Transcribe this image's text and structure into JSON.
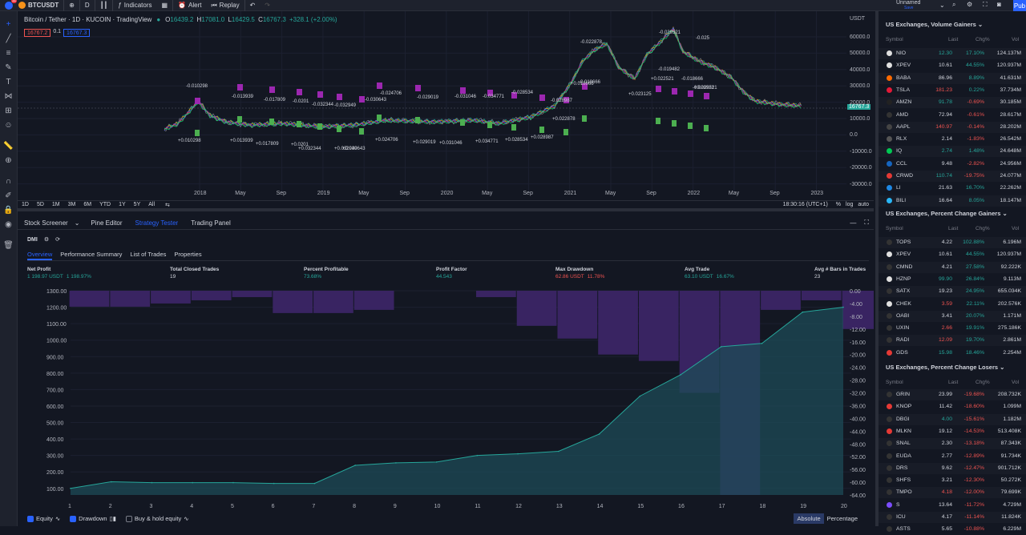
{
  "topbar": {
    "symbol": "BTCUSDT",
    "interval": "D",
    "indicators_label": "Indicators",
    "alert_label": "Alert",
    "replay_label": "Replay",
    "layout_name": "Unnamed",
    "layout_status": "Save",
    "publish_label": "Pub",
    "notif_count": "11"
  },
  "legend": {
    "title": "Bitcoin / Tether · 1D · KUCOIN · TradingView",
    "open": "16439.2",
    "high": "17081.0",
    "low": "16429.5",
    "close": "16767.3",
    "change": "+328.1 (+2.00%)",
    "bid": "16767.2",
    "spread": "0.1",
    "ask": "16767.3"
  },
  "yaxis": {
    "currency": "USDT",
    "labels": [
      "60000.0",
      "50000.0",
      "40000.0",
      "30000.0",
      "20000.0",
      "10000.0",
      "0.0",
      "-10000.0",
      "-20000.0",
      "-30000.0"
    ],
    "current_price": "16767.3"
  },
  "xaxis": [
    "2018",
    "May",
    "Sep",
    "2019",
    "May",
    "Sep",
    "2020",
    "May",
    "Sep",
    "2021",
    "May",
    "Sep",
    "2022",
    "May",
    "Sep",
    "2023"
  ],
  "trade_labels": {
    "above": [
      "-0.010298",
      "-0.013939",
      "-0.017809",
      "-0.0201",
      "-0.032344",
      "-0.032949",
      "-0.030643",
      "-0.024706",
      "-0.029019",
      "-0.031046",
      "-0.034771",
      "-0.028534",
      "-0.028987",
      "-0.022878",
      "-0.018666",
      "-0.029521",
      "-0.025",
      "-0.029521",
      "-0.019482",
      "-0.018666"
    ],
    "below": [
      "+0.010298",
      "+0.013939",
      "+0.017809",
      "+0.0201",
      "+0.032344",
      "+0.032949",
      "+0.030643",
      "+0.024706",
      "+0.029019",
      "+0.031046",
      "+0.034771",
      "+0.028534",
      "+0.028987",
      "+0.022878",
      "+0.018666",
      "+0.023125",
      "+0.022521",
      "+0.029521"
    ]
  },
  "periods": [
    "1D",
    "5D",
    "1M",
    "3M",
    "6M",
    "YTD",
    "1Y",
    "5Y",
    "All"
  ],
  "clock": "18:30:16 (UTC+1)",
  "scale_opts": [
    "%",
    "log",
    "auto"
  ],
  "panel_tabs": [
    "Stock Screener",
    "Pine Editor",
    "Strategy Tester",
    "Trading Panel"
  ],
  "strategy_name": "DMI",
  "sub_tabs": [
    "Overview",
    "Performance Summary",
    "List of Trades",
    "Properties"
  ],
  "metrics": [
    {
      "title": "Net Profit",
      "value": "1 198.97 USDT",
      "pct": "1 198.97%",
      "cls": "pos"
    },
    {
      "title": "Total Closed Trades",
      "value": "19",
      "pct": "",
      "cls": "plain"
    },
    {
      "title": "Percent Profitable",
      "value": "73.68%",
      "pct": "",
      "cls": "pos"
    },
    {
      "title": "Profit Factor",
      "value": "44.543",
      "pct": "",
      "cls": "pos"
    },
    {
      "title": "Max Drawdown",
      "value": "62.86 USDT",
      "pct": "11.78%",
      "cls": "neg"
    },
    {
      "title": "Avg Trade",
      "value": "63.10 USDT",
      "pct": "16.67%",
      "cls": "pos"
    },
    {
      "title": "Avg # Bars in Trades",
      "value": "23",
      "pct": "",
      "cls": "plain"
    }
  ],
  "chart_data": {
    "type": "area",
    "x": [
      1,
      2,
      3,
      4,
      5,
      6,
      7,
      8,
      9,
      10,
      11,
      12,
      13,
      14,
      15,
      16,
      17,
      18,
      19,
      20
    ],
    "series": [
      {
        "name": "Equity",
        "values": [
          100,
          140,
          135,
          135,
          135,
          130,
          130,
          240,
          255,
          260,
          300,
          310,
          325,
          430,
          660,
          790,
          960,
          980,
          1170,
          1200
        ]
      },
      {
        "name": "Drawdown",
        "values": [
          -5,
          -5,
          -4,
          -3,
          -2,
          -7,
          -7,
          -6,
          0,
          0,
          -2,
          -11,
          -15,
          -20,
          -22,
          -32,
          -64,
          -6,
          -3,
          -12
        ]
      }
    ],
    "left_axis": [
      "1300.00",
      "1200.00",
      "1100.00",
      "1000.00",
      "900.00",
      "800.00",
      "700.00",
      "600.00",
      "500.00",
      "400.00",
      "300.00",
      "200.00",
      "100.00"
    ],
    "right_axis": [
      "0.00",
      "-4.00",
      "-8.00",
      "-12.00",
      "-16.00",
      "-20.00",
      "-24.00",
      "-28.00",
      "-32.00",
      "-36.00",
      "-40.00",
      "-44.00",
      "-48.00",
      "-52.00",
      "-56.00",
      "-60.00",
      "-64.00"
    ],
    "ylim_left": [
      60,
      1300
    ],
    "ylim_right": [
      -64,
      0
    ],
    "colors": {
      "equity": "#26a69a",
      "drawdown": "#7e57c2",
      "fill_equity": "#1e4b57",
      "fill_drawdown": "#3b2566"
    }
  },
  "bottom": {
    "equity": "Equity",
    "drawdown": "Drawdown",
    "buyhold": "Buy & hold equity",
    "absolute": "Absolute",
    "percentage": "Percentage"
  },
  "watch1": {
    "title": "US Exchanges, Volume Gainers",
    "cols": [
      "Symbol",
      "Last",
      "Chg%",
      "Vol"
    ],
    "rows": [
      {
        "s": "NIO",
        "l": "12.30",
        "c": "17.10%",
        "v": "124.137M",
        "lc": "pos",
        "cc": "pos",
        "ic": "#e0e0e0"
      },
      {
        "s": "XPEV",
        "l": "10.61",
        "c": "44.55%",
        "v": "120.937M",
        "lc": "plain",
        "cc": "pos",
        "ic": "#e0e0e0"
      },
      {
        "s": "BABA",
        "l": "86.96",
        "c": "8.89%",
        "v": "41.631M",
        "lc": "plain",
        "cc": "pos",
        "ic": "#ff6a00"
      },
      {
        "s": "TSLA",
        "l": "181.23",
        "c": "0.22%",
        "v": "37.734M",
        "lc": "neg",
        "cc": "pos",
        "ic": "#e31937"
      },
      {
        "s": "AMZN",
        "l": "91.78",
        "c": "-0.69%",
        "v": "30.185M",
        "lc": "pos",
        "cc": "neg",
        "ic": "#222"
      },
      {
        "s": "AMD",
        "l": "72.94",
        "c": "-0.61%",
        "v": "28.617M",
        "lc": "plain",
        "cc": "neg",
        "ic": "#333"
      },
      {
        "s": "AAPL",
        "l": "140.97",
        "c": "-0.14%",
        "v": "28.202M",
        "lc": "neg",
        "cc": "neg",
        "ic": "#444"
      },
      {
        "s": "RLX",
        "l": "2.14",
        "c": "-1.83%",
        "v": "26.542M",
        "lc": "plain",
        "cc": "neg",
        "ic": "#555"
      },
      {
        "s": "IQ",
        "l": "2.74",
        "c": "1.48%",
        "v": "24.648M",
        "lc": "pos",
        "cc": "pos",
        "ic": "#00c853"
      },
      {
        "s": "CCL",
        "l": "9.48",
        "c": "-2.82%",
        "v": "24.956M",
        "lc": "plain",
        "cc": "neg",
        "ic": "#1565c0"
      },
      {
        "s": "CRWD",
        "l": "110.74",
        "c": "-19.75%",
        "v": "24.077M",
        "lc": "pos",
        "cc": "neg",
        "ic": "#e53935"
      },
      {
        "s": "LI",
        "l": "21.63",
        "c": "16.70%",
        "v": "22.262M",
        "lc": "plain",
        "cc": "pos",
        "ic": "#1e88e5"
      },
      {
        "s": "BILI",
        "l": "16.64",
        "c": "8.05%",
        "v": "18.147M",
        "lc": "plain",
        "cc": "pos",
        "ic": "#29b6f6"
      }
    ]
  },
  "watch2": {
    "title": "US Exchanges, Percent Change Gainers",
    "cols": [
      "Symbol",
      "Last",
      "Chg%",
      "Vol"
    ],
    "rows": [
      {
        "s": "TOPS",
        "l": "4.22",
        "c": "102.88%",
        "v": "6.196M",
        "lc": "plain",
        "cc": "pos",
        "ic": "#333"
      },
      {
        "s": "XPEV",
        "l": "10.61",
        "c": "44.55%",
        "v": "120.937M",
        "lc": "plain",
        "cc": "pos",
        "ic": "#e0e0e0"
      },
      {
        "s": "CMND",
        "l": "4.21",
        "c": "27.58%",
        "v": "92.222K",
        "lc": "plain",
        "cc": "pos",
        "ic": "#333"
      },
      {
        "s": "HZNP",
        "l": "99.90",
        "c": "26.84%",
        "v": "9.113M",
        "lc": "pos",
        "cc": "pos",
        "ic": "#e0e0e0"
      },
      {
        "s": "SATX",
        "l": "19.23",
        "c": "24.95%",
        "v": "655.034K",
        "lc": "plain",
        "cc": "pos",
        "ic": "#333"
      },
      {
        "s": "CHEK",
        "l": "3.59",
        "c": "22.11%",
        "v": "202.576K",
        "lc": "neg",
        "cc": "pos",
        "ic": "#e0e0e0"
      },
      {
        "s": "OABI",
        "l": "3.41",
        "c": "20.07%",
        "v": "1.171M",
        "lc": "plain",
        "cc": "pos",
        "ic": "#333"
      },
      {
        "s": "UXIN",
        "l": "2.66",
        "c": "19.91%",
        "v": "275.186K",
        "lc": "neg",
        "cc": "pos",
        "ic": "#333"
      },
      {
        "s": "RADI",
        "l": "12.09",
        "c": "19.70%",
        "v": "2.861M",
        "lc": "neg",
        "cc": "pos",
        "ic": "#333"
      },
      {
        "s": "GDS",
        "l": "15.98",
        "c": "18.46%",
        "v": "2.254M",
        "lc": "pos",
        "cc": "pos",
        "ic": "#e53935"
      }
    ]
  },
  "watch3": {
    "title": "US Exchanges, Percent Change Losers",
    "cols": [
      "Symbol",
      "Last",
      "Chg%",
      "Vol"
    ],
    "rows": [
      {
        "s": "GRIN",
        "l": "23.99",
        "c": "-19.68%",
        "v": "208.732K",
        "lc": "plain",
        "cc": "neg",
        "ic": "#333"
      },
      {
        "s": "KNOP",
        "l": "11.42",
        "c": "-18.60%",
        "v": "1.099M",
        "lc": "plain",
        "cc": "neg",
        "ic": "#e53935"
      },
      {
        "s": "DBGI",
        "l": "4.00",
        "c": "-15.61%",
        "v": "1.182M",
        "lc": "pos",
        "cc": "neg",
        "ic": "#333"
      },
      {
        "s": "MLKN",
        "l": "19.12",
        "c": "-14.53%",
        "v": "513.408K",
        "lc": "plain",
        "cc": "neg",
        "ic": "#e53935"
      },
      {
        "s": "SNAL",
        "l": "2.30",
        "c": "-13.18%",
        "v": "87.343K",
        "lc": "plain",
        "cc": "neg",
        "ic": "#333"
      },
      {
        "s": "EUDA",
        "l": "2.77",
        "c": "-12.89%",
        "v": "91.734K",
        "lc": "plain",
        "cc": "neg",
        "ic": "#333"
      },
      {
        "s": "DRS",
        "l": "9.62",
        "c": "-12.47%",
        "v": "901.712K",
        "lc": "plain",
        "cc": "neg",
        "ic": "#333"
      },
      {
        "s": "SHFS",
        "l": "3.21",
        "c": "-12.30%",
        "v": "50.272K",
        "lc": "plain",
        "cc": "neg",
        "ic": "#333"
      },
      {
        "s": "TMPO",
        "l": "4.18",
        "c": "-12.00%",
        "v": "79.699K",
        "lc": "neg",
        "cc": "neg",
        "ic": "#333"
      },
      {
        "s": "S",
        "l": "13.64",
        "c": "-11.72%",
        "v": "4.729M",
        "lc": "plain",
        "cc": "neg",
        "ic": "#7c4dff"
      },
      {
        "s": "ICU",
        "l": "4.17",
        "c": "-11.14%",
        "v": "11.824K",
        "lc": "plain",
        "cc": "neg",
        "ic": "#333"
      },
      {
        "s": "ASTS",
        "l": "5.65",
        "c": "-10.88%",
        "v": "6.229M",
        "lc": "plain",
        "cc": "neg",
        "ic": "#333"
      }
    ]
  }
}
